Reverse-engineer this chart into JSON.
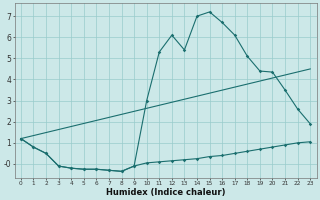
{
  "xlabel": "Humidex (Indice chaleur)",
  "background_color": "#cce8e8",
  "grid_color": "#99cccc",
  "line_color": "#1a6e6e",
  "xlim": [
    -0.5,
    23.5
  ],
  "ylim": [
    -0.65,
    7.6
  ],
  "xticks": [
    0,
    1,
    2,
    3,
    4,
    5,
    6,
    7,
    8,
    9,
    10,
    11,
    12,
    13,
    14,
    15,
    16,
    17,
    18,
    19,
    20,
    21,
    22,
    23
  ],
  "yticks": [
    0,
    1,
    2,
    3,
    4,
    5,
    6,
    7
  ],
  "ytick_labels": [
    "-0",
    "1",
    "2",
    "3",
    "4",
    "5",
    "6",
    "7"
  ],
  "line1_x": [
    0,
    1,
    2,
    3,
    4,
    5,
    6,
    7,
    8,
    9,
    10,
    11,
    12,
    13,
    14,
    15,
    16,
    17,
    18,
    19,
    20,
    21,
    22,
    23
  ],
  "line1_y": [
    1.2,
    0.8,
    0.5,
    -0.1,
    -0.2,
    -0.25,
    -0.25,
    -0.3,
    -0.35,
    -0.1,
    0.05,
    0.1,
    0.15,
    0.2,
    0.25,
    0.35,
    0.4,
    0.5,
    0.6,
    0.7,
    0.8,
    0.9,
    1.0,
    1.05
  ],
  "line2_x": [
    0,
    1,
    2,
    3,
    4,
    5,
    6,
    7,
    8,
    9,
    10,
    11,
    12,
    13,
    14,
    15,
    16,
    17,
    18,
    19,
    20,
    21,
    22,
    23
  ],
  "line2_y": [
    1.2,
    0.8,
    0.5,
    -0.1,
    -0.2,
    -0.25,
    -0.25,
    -0.3,
    -0.35,
    -0.1,
    3.0,
    5.3,
    6.1,
    5.4,
    7.0,
    7.2,
    6.7,
    6.1,
    5.1,
    4.4,
    4.35,
    3.5,
    2.6,
    1.9
  ],
  "line3_x": [
    0,
    23
  ],
  "line3_y": [
    1.2,
    4.5
  ]
}
